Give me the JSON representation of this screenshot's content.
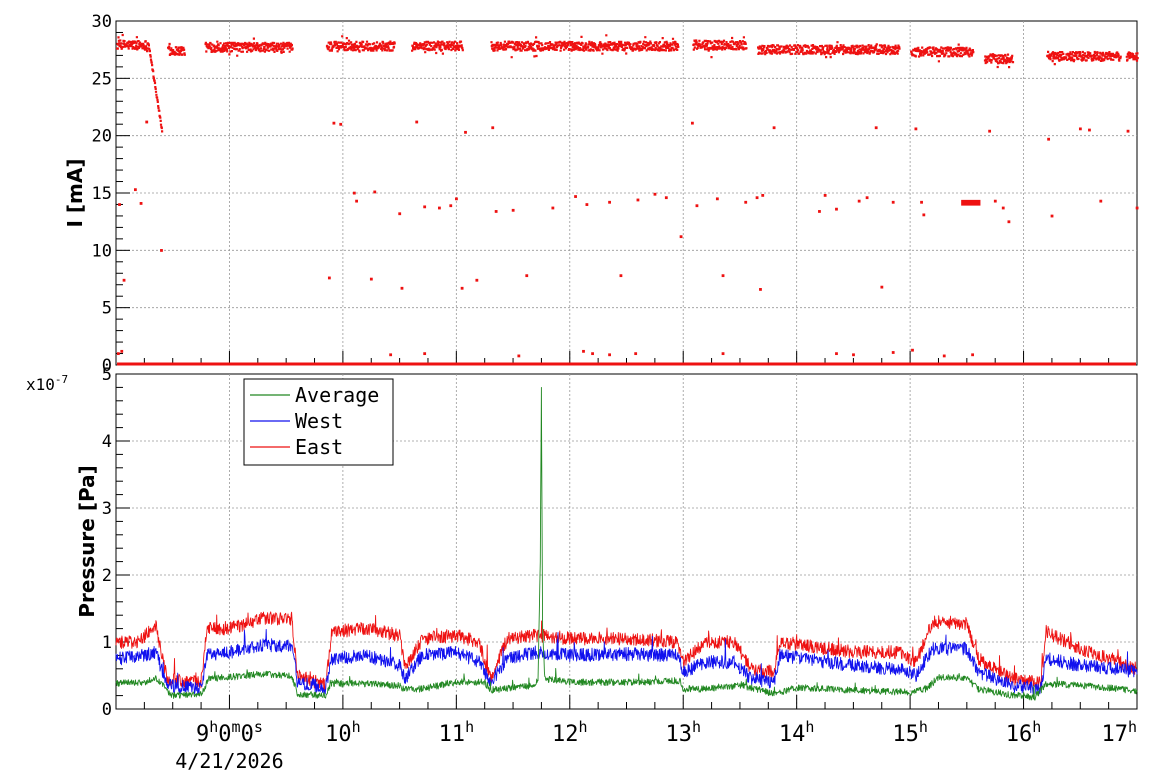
{
  "chart_data": [
    {
      "type": "scatter",
      "panel": "current",
      "title": "",
      "ylabel": "I [mA]",
      "xlabel": "",
      "ylim": [
        0,
        30
      ],
      "xlim": [
        8.0,
        17.0
      ],
      "y_ticks": [
        "0",
        "5",
        "10",
        "15",
        "20",
        "25",
        "30"
      ],
      "grid": true,
      "series": [
        {
          "color": "#ee1111",
          "segments": [
            {
              "start": 8.0,
              "end": 8.28,
              "level": 28.0
            },
            {
              "start": 8.28,
              "end": 8.4,
              "from": 28.0,
              "to": 20.3
            },
            {
              "start": 8.45,
              "end": 8.6,
              "level": 27.5
            },
            {
              "start": 8.78,
              "end": 9.55,
              "level": 27.8
            },
            {
              "start": 9.85,
              "end": 10.45,
              "level": 27.9
            },
            {
              "start": 10.6,
              "end": 11.05,
              "level": 27.9
            },
            {
              "start": 11.3,
              "end": 12.95,
              "level": 27.9
            },
            {
              "start": 13.08,
              "end": 13.55,
              "level": 28.0
            },
            {
              "start": 13.65,
              "end": 14.9,
              "level": 27.6
            },
            {
              "start": 15.0,
              "end": 15.55,
              "level": 27.4
            },
            {
              "start": 15.65,
              "end": 15.9,
              "level": 26.8
            },
            {
              "start": 16.2,
              "end": 16.85,
              "level": 27.0
            },
            {
              "start": 16.9,
              "end": 17.0,
              "level": 27.0
            }
          ],
          "points": [
            [
              8.03,
              14.0
            ],
            [
              8.07,
              7.4
            ],
            [
              8.17,
              15.3
            ],
            [
              8.22,
              14.1
            ],
            [
              8.27,
              21.2
            ],
            [
              8.4,
              10.0
            ],
            [
              9.88,
              7.6
            ],
            [
              9.92,
              21.1
            ],
            [
              9.98,
              21.0
            ],
            [
              10.1,
              15.0
            ],
            [
              10.12,
              14.3
            ],
            [
              10.25,
              7.5
            ],
            [
              10.28,
              15.1
            ],
            [
              10.5,
              13.2
            ],
            [
              10.52,
              6.7
            ],
            [
              10.65,
              21.2
            ],
            [
              10.72,
              13.8
            ],
            [
              10.85,
              13.7
            ],
            [
              10.95,
              13.9
            ],
            [
              11.0,
              14.5
            ],
            [
              11.05,
              6.7
            ],
            [
              11.08,
              20.3
            ],
            [
              11.18,
              7.4
            ],
            [
              11.32,
              20.7
            ],
            [
              11.35,
              13.4
            ],
            [
              11.5,
              13.5
            ],
            [
              11.62,
              7.8
            ],
            [
              11.85,
              13.7
            ],
            [
              12.05,
              14.7
            ],
            [
              12.15,
              14.0
            ],
            [
              12.35,
              14.2
            ],
            [
              12.45,
              7.8
            ],
            [
              12.6,
              14.4
            ],
            [
              12.75,
              14.9
            ],
            [
              12.85,
              14.6
            ],
            [
              12.98,
              11.2
            ],
            [
              13.08,
              21.1
            ],
            [
              13.12,
              13.9
            ],
            [
              13.3,
              14.5
            ],
            [
              13.35,
              7.8
            ],
            [
              13.55,
              14.2
            ],
            [
              13.65,
              14.6
            ],
            [
              13.7,
              14.8
            ],
            [
              13.68,
              6.6
            ],
            [
              13.8,
              20.7
            ],
            [
              14.2,
              13.4
            ],
            [
              14.25,
              14.8
            ],
            [
              14.35,
              13.6
            ],
            [
              14.55,
              14.3
            ],
            [
              14.62,
              14.6
            ],
            [
              14.7,
              20.7
            ],
            [
              14.75,
              6.8
            ],
            [
              14.85,
              14.2
            ],
            [
              15.05,
              20.6
            ],
            [
              15.1,
              14.2
            ],
            [
              15.12,
              13.1
            ],
            [
              15.7,
              20.4
            ],
            [
              15.75,
              14.3
            ],
            [
              15.82,
              13.7
            ],
            [
              15.87,
              12.5
            ],
            [
              16.22,
              19.7
            ],
            [
              16.25,
              13.0
            ],
            [
              16.5,
              20.6
            ],
            [
              16.58,
              20.5
            ],
            [
              16.68,
              14.3
            ],
            [
              16.92,
              20.4
            ],
            [
              17.0,
              13.7
            ],
            [
              8.02,
              1.0
            ],
            [
              8.05,
              1.2
            ],
            [
              10.42,
              0.9
            ],
            [
              10.72,
              1.0
            ],
            [
              11.55,
              0.8
            ],
            [
              12.12,
              1.2
            ],
            [
              12.2,
              1.0
            ],
            [
              12.35,
              0.9
            ],
            [
              12.58,
              1.0
            ],
            [
              13.35,
              1.0
            ],
            [
              14.35,
              1.0
            ],
            [
              14.5,
              0.9
            ],
            [
              14.85,
              1.1
            ],
            [
              15.02,
              1.3
            ],
            [
              15.3,
              0.8
            ],
            [
              15.55,
              0.9
            ]
          ],
          "cluster": {
            "x": [
              15.45,
              15.62
            ],
            "y": [
              13.9,
              14.4
            ]
          },
          "baseline_zero": true
        }
      ]
    },
    {
      "type": "line",
      "panel": "pressure",
      "title": "",
      "ylabel": "Pressure [Pa]",
      "xlabel": "",
      "y_exponent_label": "x10",
      "y_exponent_sup": "-7",
      "ylim": [
        0,
        5
      ],
      "xlim": [
        8.0,
        17.0
      ],
      "y_ticks": [
        "0",
        "1",
        "2",
        "3",
        "4",
        "5"
      ],
      "x_ticks": [
        {
          "pos": 9.0,
          "main": "9",
          "h": "h",
          "rest": "0",
          "m": "m",
          "rest2": "0",
          "s": "s"
        },
        {
          "pos": 10.0,
          "main": "10",
          "h": "h"
        },
        {
          "pos": 11.0,
          "main": "11",
          "h": "h"
        },
        {
          "pos": 12.0,
          "main": "12",
          "h": "h"
        },
        {
          "pos": 13.0,
          "main": "13",
          "h": "h"
        },
        {
          "pos": 14.0,
          "main": "14",
          "h": "h"
        },
        {
          "pos": 15.0,
          "main": "15",
          "h": "h"
        },
        {
          "pos": 16.0,
          "main": "16",
          "h": "h"
        },
        {
          "pos": 17.0,
          "main": "17",
          "h": "h"
        }
      ],
      "date_label": "4/21/2026",
      "grid": true,
      "legend": {
        "placement": "top-left"
      },
      "series": [
        {
          "name": "Average",
          "color": "#228822",
          "noise": 0.05,
          "points": [
            [
              8.0,
              0.38
            ],
            [
              8.25,
              0.4
            ],
            [
              8.35,
              0.45
            ],
            [
              8.5,
              0.2
            ],
            [
              8.75,
              0.22
            ],
            [
              8.82,
              0.45
            ],
            [
              9.3,
              0.52
            ],
            [
              9.55,
              0.5
            ],
            [
              9.6,
              0.22
            ],
            [
              9.85,
              0.2
            ],
            [
              9.9,
              0.38
            ],
            [
              10.2,
              0.38
            ],
            [
              10.5,
              0.35
            ],
            [
              10.52,
              0.3
            ],
            [
              10.7,
              0.3
            ],
            [
              11.0,
              0.4
            ],
            [
              11.25,
              0.4
            ],
            [
              11.3,
              0.28
            ],
            [
              11.5,
              0.32
            ],
            [
              11.68,
              0.35
            ],
            [
              11.72,
              0.45
            ],
            [
              11.74,
              2.2
            ],
            [
              11.75,
              4.8
            ],
            [
              11.76,
              1.2
            ],
            [
              11.78,
              0.45
            ],
            [
              12.0,
              0.4
            ],
            [
              12.5,
              0.4
            ],
            [
              12.97,
              0.42
            ],
            [
              13.0,
              0.3
            ],
            [
              13.15,
              0.3
            ],
            [
              13.5,
              0.35
            ],
            [
              13.65,
              0.3
            ],
            [
              13.8,
              0.22
            ],
            [
              14.0,
              0.32
            ],
            [
              14.5,
              0.28
            ],
            [
              15.0,
              0.25
            ],
            [
              15.15,
              0.3
            ],
            [
              15.25,
              0.48
            ],
            [
              15.5,
              0.45
            ],
            [
              15.6,
              0.3
            ],
            [
              15.9,
              0.2
            ],
            [
              16.1,
              0.18
            ],
            [
              16.2,
              0.38
            ],
            [
              16.5,
              0.35
            ],
            [
              16.85,
              0.3
            ],
            [
              17.0,
              0.25
            ]
          ]
        },
        {
          "name": "West",
          "color": "#1111ee",
          "noise": 0.1,
          "points": [
            [
              8.0,
              0.75
            ],
            [
              8.2,
              0.78
            ],
            [
              8.35,
              0.85
            ],
            [
              8.45,
              0.35
            ],
            [
              8.75,
              0.3
            ],
            [
              8.8,
              0.8
            ],
            [
              9.0,
              0.85
            ],
            [
              9.3,
              0.95
            ],
            [
              9.55,
              0.95
            ],
            [
              9.6,
              0.4
            ],
            [
              9.85,
              0.32
            ],
            [
              9.9,
              0.75
            ],
            [
              10.2,
              0.8
            ],
            [
              10.5,
              0.65
            ],
            [
              10.55,
              0.45
            ],
            [
              10.7,
              0.8
            ],
            [
              11.0,
              0.85
            ],
            [
              11.2,
              0.7
            ],
            [
              11.3,
              0.4
            ],
            [
              11.45,
              0.75
            ],
            [
              11.7,
              0.85
            ],
            [
              12.0,
              0.8
            ],
            [
              12.5,
              0.82
            ],
            [
              12.95,
              0.8
            ],
            [
              13.0,
              0.55
            ],
            [
              13.2,
              0.7
            ],
            [
              13.45,
              0.7
            ],
            [
              13.6,
              0.45
            ],
            [
              13.8,
              0.4
            ],
            [
              13.85,
              0.8
            ],
            [
              14.2,
              0.72
            ],
            [
              14.5,
              0.65
            ],
            [
              14.9,
              0.6
            ],
            [
              15.05,
              0.5
            ],
            [
              15.2,
              0.9
            ],
            [
              15.5,
              0.9
            ],
            [
              15.6,
              0.55
            ],
            [
              15.9,
              0.35
            ],
            [
              16.15,
              0.3
            ],
            [
              16.2,
              0.75
            ],
            [
              16.5,
              0.65
            ],
            [
              16.85,
              0.6
            ],
            [
              17.0,
              0.55
            ]
          ]
        },
        {
          "name": "East",
          "color": "#ee1111",
          "noise": 0.1,
          "points": [
            [
              8.0,
              1.0
            ],
            [
              8.2,
              1.0
            ],
            [
              8.35,
              1.25
            ],
            [
              8.45,
              0.45
            ],
            [
              8.75,
              0.4
            ],
            [
              8.8,
              1.2
            ],
            [
              9.0,
              1.2
            ],
            [
              9.3,
              1.35
            ],
            [
              9.55,
              1.35
            ],
            [
              9.6,
              0.5
            ],
            [
              9.85,
              0.35
            ],
            [
              9.9,
              1.15
            ],
            [
              10.2,
              1.2
            ],
            [
              10.5,
              1.1
            ],
            [
              10.55,
              0.6
            ],
            [
              10.7,
              1.05
            ],
            [
              11.0,
              1.1
            ],
            [
              11.2,
              1.0
            ],
            [
              11.3,
              0.45
            ],
            [
              11.45,
              1.05
            ],
            [
              11.7,
              1.1
            ],
            [
              12.0,
              1.05
            ],
            [
              12.5,
              1.05
            ],
            [
              12.95,
              1.0
            ],
            [
              13.0,
              0.7
            ],
            [
              13.2,
              1.0
            ],
            [
              13.45,
              1.0
            ],
            [
              13.6,
              0.6
            ],
            [
              13.8,
              0.55
            ],
            [
              13.85,
              1.0
            ],
            [
              14.2,
              0.92
            ],
            [
              14.5,
              0.85
            ],
            [
              14.9,
              0.85
            ],
            [
              15.05,
              0.7
            ],
            [
              15.2,
              1.3
            ],
            [
              15.5,
              1.28
            ],
            [
              15.6,
              0.75
            ],
            [
              15.9,
              0.45
            ],
            [
              16.15,
              0.38
            ],
            [
              16.2,
              1.15
            ],
            [
              16.5,
              0.9
            ],
            [
              16.85,
              0.7
            ],
            [
              17.0,
              0.6
            ]
          ]
        }
      ]
    }
  ]
}
